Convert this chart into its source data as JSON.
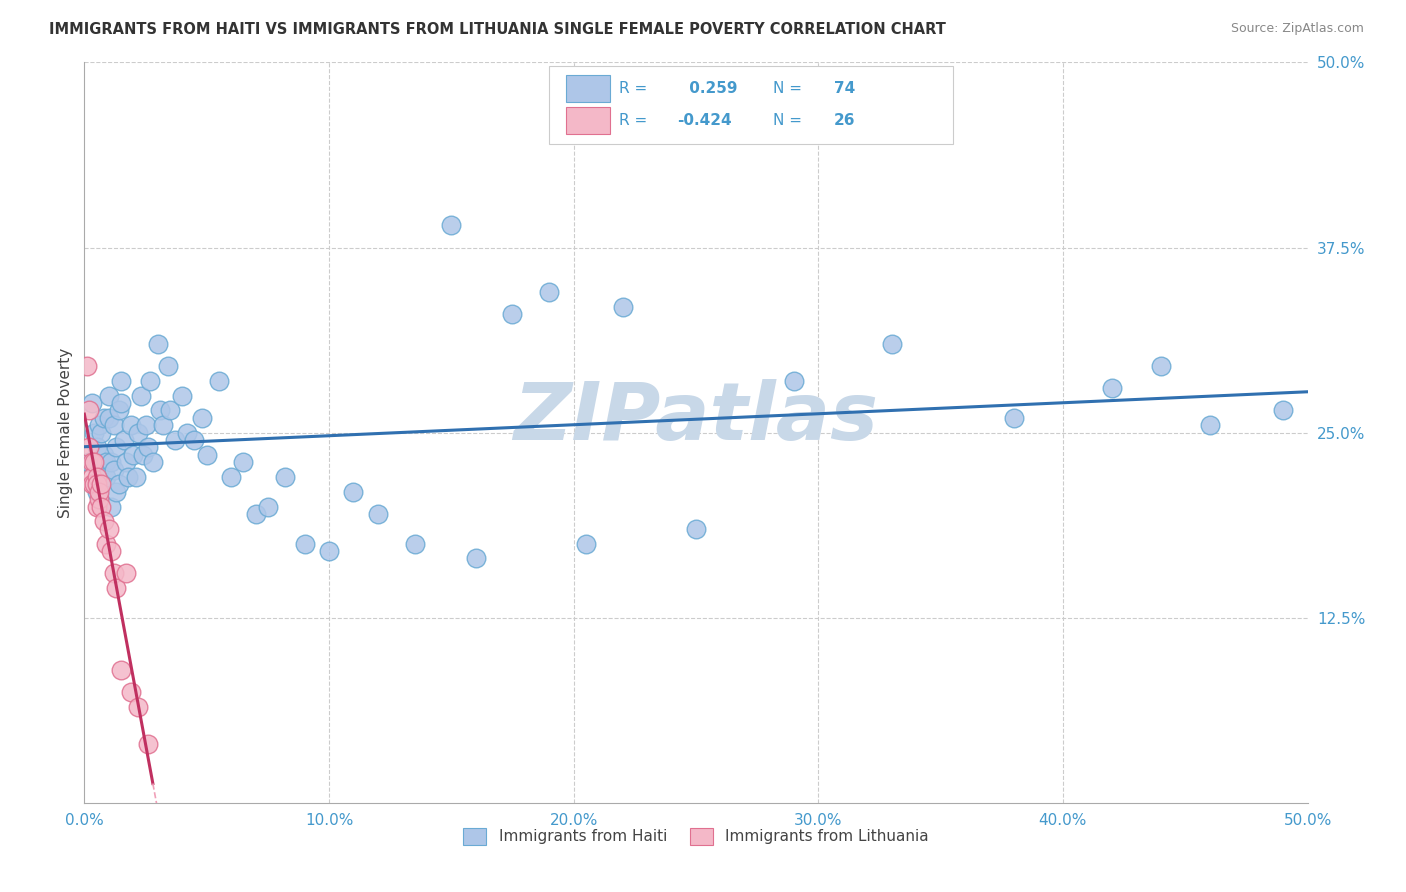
{
  "title": "IMMIGRANTS FROM HAITI VS IMMIGRANTS FROM LITHUANIA SINGLE FEMALE POVERTY CORRELATION CHART",
  "source": "Source: ZipAtlas.com",
  "xlabel_haiti": "Immigrants from Haiti",
  "xlabel_lithuania": "Immigrants from Lithuania",
  "ylabel": "Single Female Poverty",
  "xlim": [
    0.0,
    0.5
  ],
  "ylim": [
    0.0,
    0.5
  ],
  "xticks": [
    0.0,
    0.1,
    0.2,
    0.3,
    0.4,
    0.5
  ],
  "yticks_right": [
    0.125,
    0.25,
    0.375,
    0.5
  ],
  "ytick_labels_right": [
    "12.5%",
    "25.0%",
    "37.5%",
    "50.0%"
  ],
  "xtick_labels": [
    "0.0%",
    "10.0%",
    "20.0%",
    "30.0%",
    "40.0%",
    "50.0%"
  ],
  "haiti_color": "#aec6e8",
  "haiti_edge_color": "#6aaad4",
  "lithuania_color": "#f4b8c8",
  "lithuania_edge_color": "#e07090",
  "haiti_R": 0.259,
  "haiti_N": 74,
  "lithuania_R": -0.424,
  "lithuania_N": 26,
  "trend_haiti_color": "#3070b0",
  "trend_lithuania_color": "#c03060",
  "trend_lithuania_dashed_color": "#f0a0b8",
  "watermark": "ZIPatlas",
  "watermark_color": "#c8d8e8",
  "background_color": "#ffffff",
  "haiti_x": [
    0.002,
    0.003,
    0.004,
    0.005,
    0.005,
    0.006,
    0.006,
    0.007,
    0.007,
    0.008,
    0.008,
    0.009,
    0.009,
    0.01,
    0.01,
    0.011,
    0.011,
    0.012,
    0.012,
    0.013,
    0.013,
    0.014,
    0.014,
    0.015,
    0.015,
    0.016,
    0.017,
    0.018,
    0.019,
    0.02,
    0.021,
    0.022,
    0.023,
    0.024,
    0.025,
    0.026,
    0.027,
    0.028,
    0.03,
    0.031,
    0.032,
    0.034,
    0.035,
    0.037,
    0.04,
    0.042,
    0.045,
    0.048,
    0.05,
    0.055,
    0.06,
    0.065,
    0.07,
    0.075,
    0.082,
    0.09,
    0.1,
    0.11,
    0.12,
    0.135,
    0.15,
    0.16,
    0.175,
    0.19,
    0.205,
    0.22,
    0.25,
    0.29,
    0.33,
    0.38,
    0.42,
    0.44,
    0.46,
    0.49
  ],
  "haiti_y": [
    0.23,
    0.27,
    0.25,
    0.24,
    0.21,
    0.225,
    0.255,
    0.215,
    0.25,
    0.235,
    0.26,
    0.23,
    0.22,
    0.26,
    0.275,
    0.23,
    0.2,
    0.255,
    0.225,
    0.24,
    0.21,
    0.265,
    0.215,
    0.27,
    0.285,
    0.245,
    0.23,
    0.22,
    0.255,
    0.235,
    0.22,
    0.25,
    0.275,
    0.235,
    0.255,
    0.24,
    0.285,
    0.23,
    0.31,
    0.265,
    0.255,
    0.295,
    0.265,
    0.245,
    0.275,
    0.25,
    0.245,
    0.26,
    0.235,
    0.285,
    0.22,
    0.23,
    0.195,
    0.2,
    0.22,
    0.175,
    0.17,
    0.21,
    0.195,
    0.175,
    0.39,
    0.165,
    0.33,
    0.345,
    0.175,
    0.335,
    0.185,
    0.285,
    0.31,
    0.26,
    0.28,
    0.295,
    0.255,
    0.265
  ],
  "lithuania_x": [
    0.001,
    0.002,
    0.002,
    0.003,
    0.003,
    0.003,
    0.004,
    0.004,
    0.005,
    0.005,
    0.005,
    0.006,
    0.006,
    0.007,
    0.007,
    0.008,
    0.009,
    0.01,
    0.011,
    0.012,
    0.013,
    0.015,
    0.017,
    0.019,
    0.022,
    0.026
  ],
  "lithuania_y": [
    0.295,
    0.265,
    0.24,
    0.23,
    0.22,
    0.215,
    0.23,
    0.215,
    0.22,
    0.215,
    0.2,
    0.205,
    0.21,
    0.2,
    0.215,
    0.19,
    0.175,
    0.185,
    0.17,
    0.155,
    0.145,
    0.09,
    0.155,
    0.075,
    0.065,
    0.04
  ]
}
